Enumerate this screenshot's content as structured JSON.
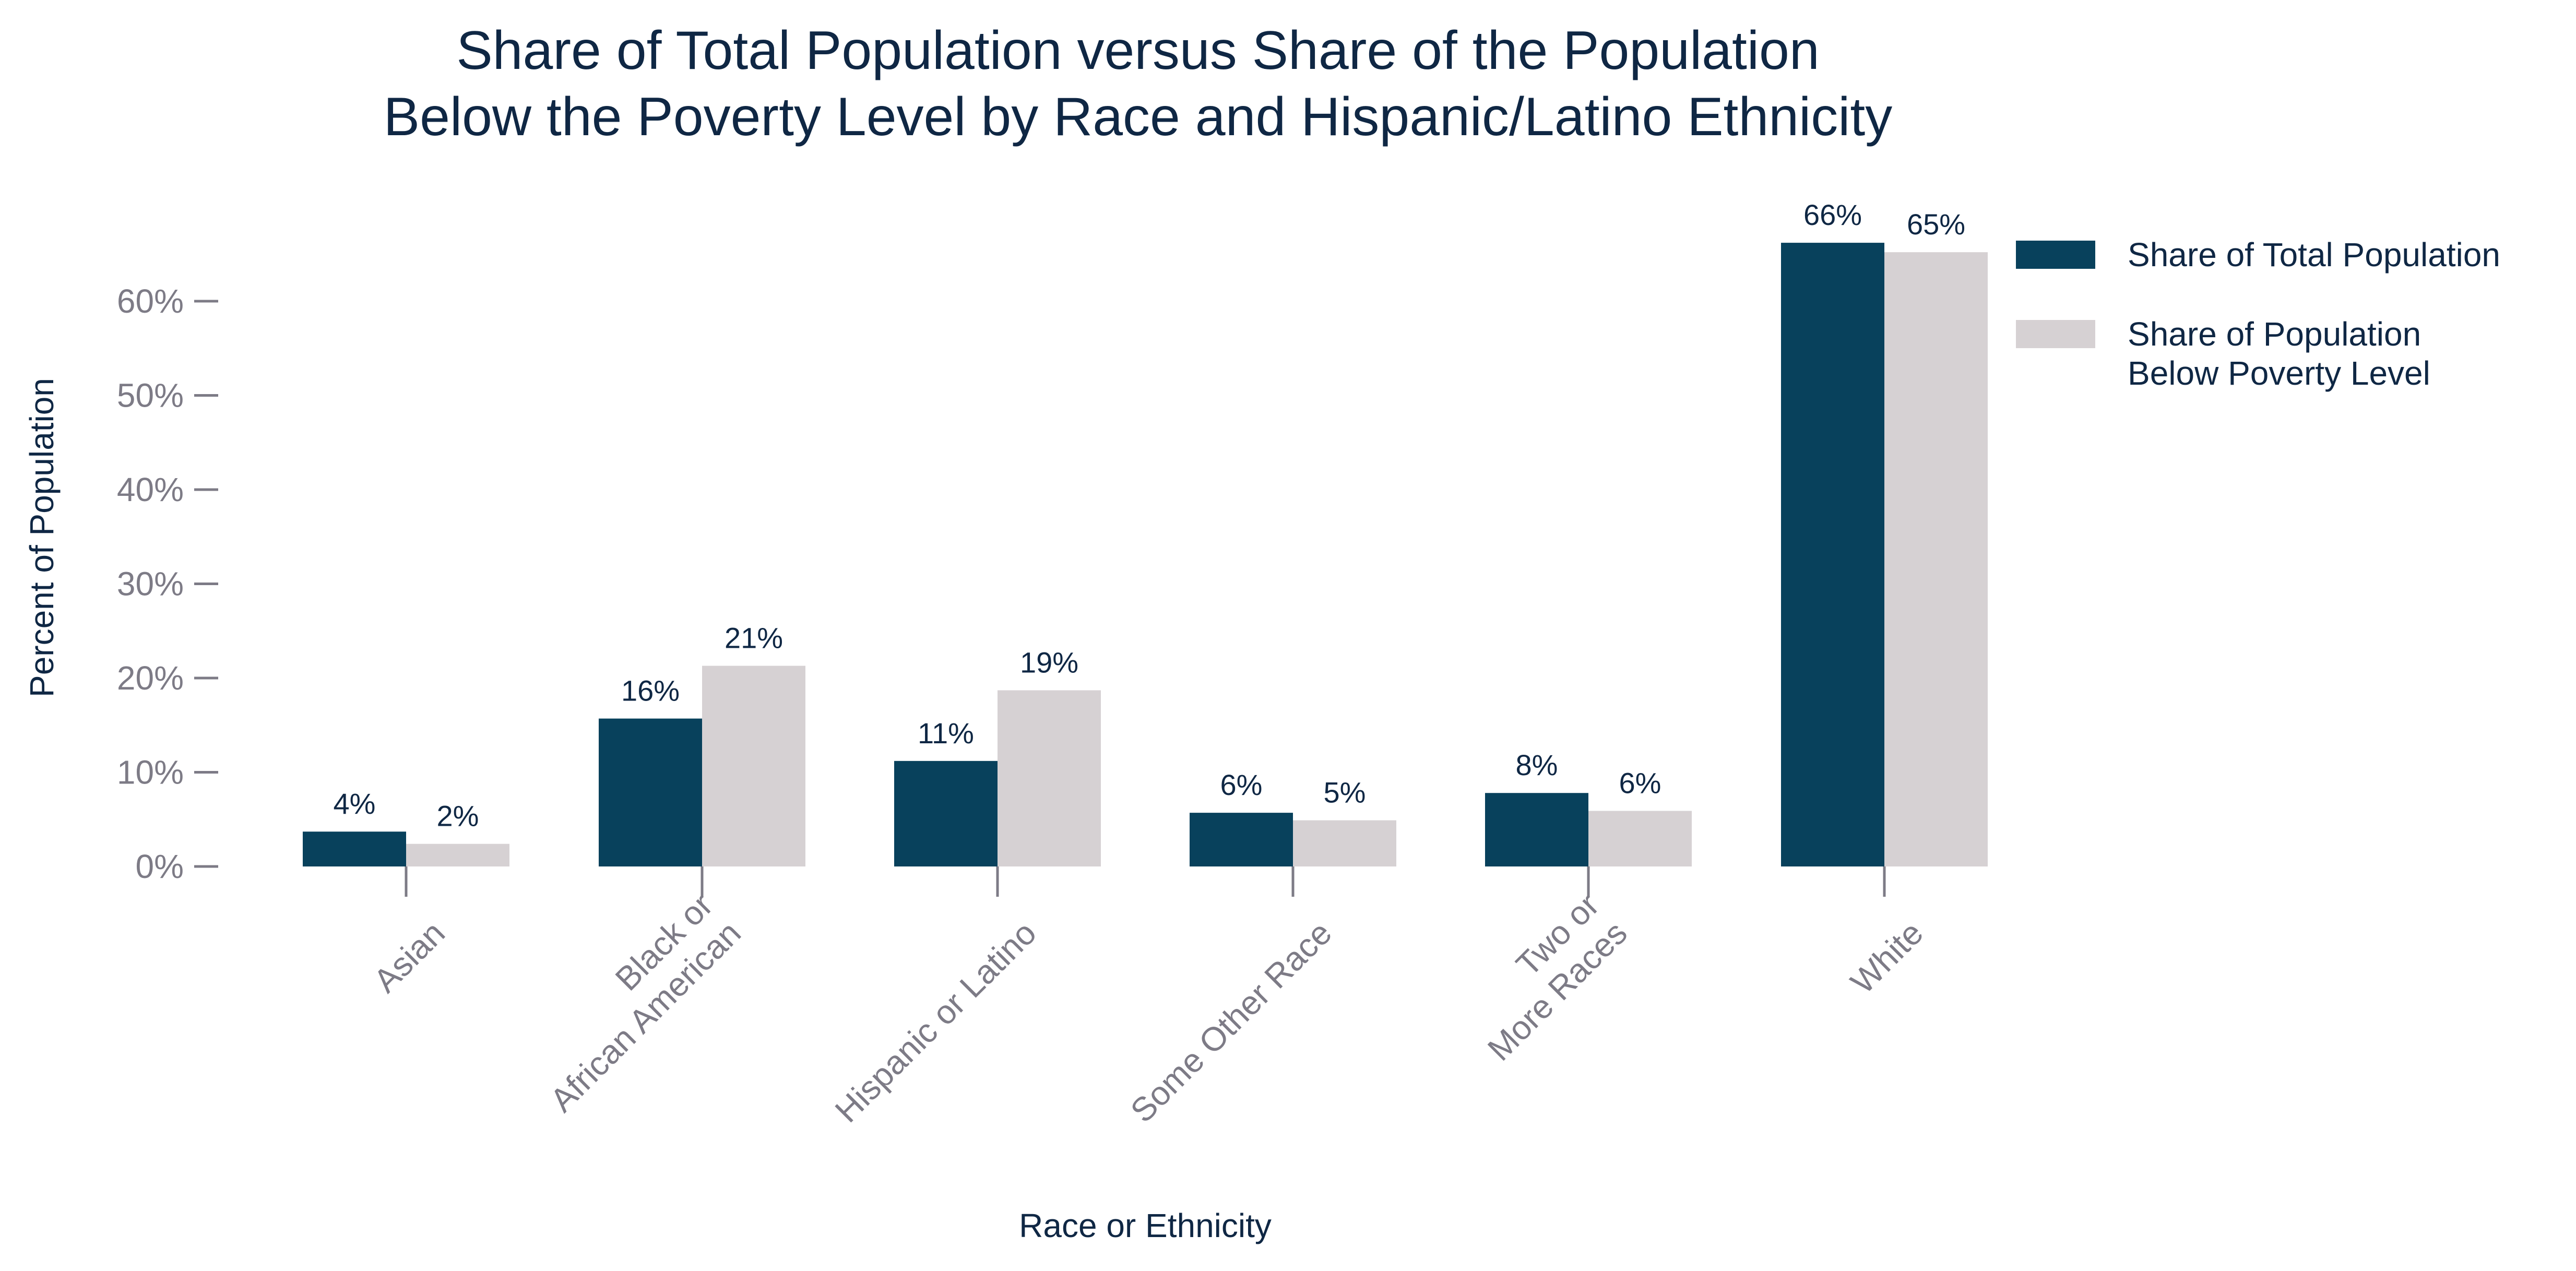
{
  "chart_data": {
    "type": "bar",
    "title": [
      "Share of Total Population versus Share of the Population",
      "Below the Poverty Level by Race and Hispanic/Latino Ethnicity"
    ],
    "xlabel": "Race or Ethnicity",
    "ylabel": "Percent of Population",
    "categories": [
      [
        "Asian"
      ],
      [
        "Black or",
        "African American"
      ],
      [
        "Hispanic or Latino"
      ],
      [
        "Some Other Race"
      ],
      [
        "Two or",
        "More Races"
      ],
      [
        "White"
      ]
    ],
    "series": [
      {
        "name": [
          "Share of Total Population"
        ],
        "color": "#08415c",
        "values": [
          3.7,
          15.7,
          11.2,
          5.7,
          7.8,
          66.2
        ],
        "labels": [
          "4%",
          "16%",
          "11%",
          "6%",
          "8%",
          "66%"
        ]
      },
      {
        "name": [
          "Share of Population",
          "Below Poverty Level"
        ],
        "color": "#d6d1d3",
        "values": [
          2.4,
          21.3,
          18.7,
          4.9,
          5.9,
          65.2
        ],
        "labels": [
          "2%",
          "21%",
          "19%",
          "5%",
          "6%",
          "65%"
        ]
      }
    ],
    "yticks": [
      0,
      10,
      20,
      30,
      40,
      50,
      60
    ],
    "ytick_labels": [
      "0%",
      "10%",
      "20%",
      "30%",
      "40%",
      "50%",
      "60%"
    ],
    "ylim": [
      0,
      70
    ],
    "grid": false,
    "legend_position": "top-right"
  }
}
